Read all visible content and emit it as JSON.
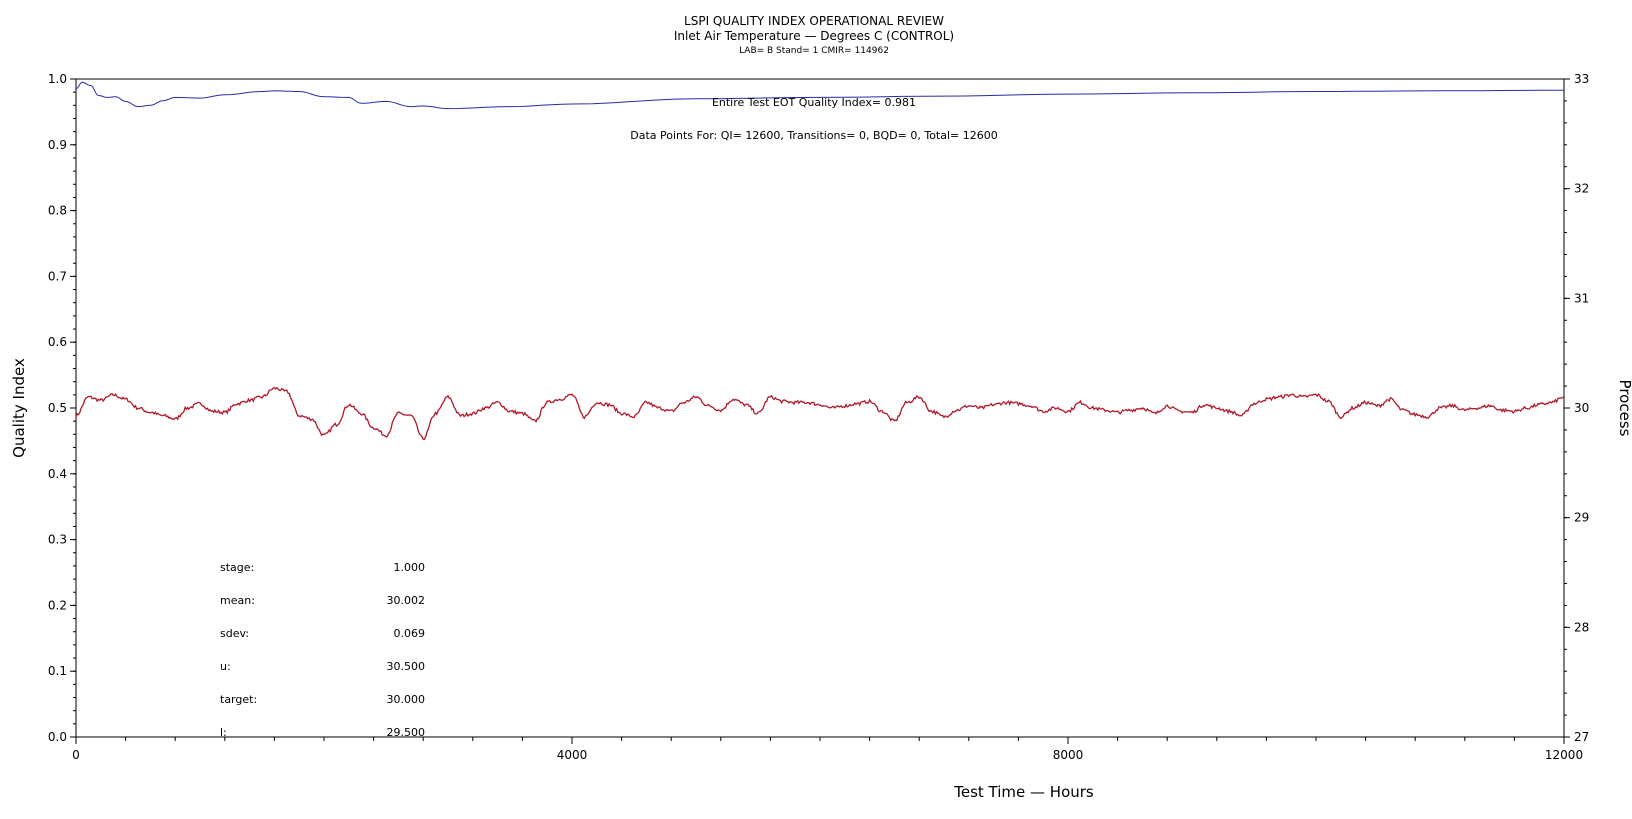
{
  "chart_data": {
    "type": "line",
    "title": "LSPI QUALITY INDEX OPERATIONAL REVIEW",
    "subtitle": "Inlet Air Temperature — Degrees C (CONTROL)",
    "subtitle2": "LAB= B Stand= 1 CMIR= 114962",
    "xlabel": "Test Time — Hours",
    "ylabel_left": "Quality Index",
    "ylabel_right": "Process",
    "xlim": [
      0,
      12000
    ],
    "ylim_left": [
      0.0,
      1.0
    ],
    "ylim_right": [
      27,
      33
    ],
    "x_ticks": [
      "0",
      "4000",
      "8000",
      "12000"
    ],
    "y_left_ticks": [
      "0.0",
      "0.1",
      "0.2",
      "0.3",
      "0.4",
      "0.5",
      "0.6",
      "0.7",
      "0.8",
      "0.9",
      "1.0"
    ],
    "y_right_ticks": [
      "27",
      "28",
      "29",
      "30",
      "31",
      "32",
      "33"
    ],
    "grid": false,
    "annotations": {
      "qi_line": "Entire Test EOT Quality Index=   0.981",
      "data_points": "Data Points For: QI= 12600, Transitions=     0, BQD=     0, Total= 12600"
    },
    "stats": [
      {
        "label": "stage:",
        "value": "1.000"
      },
      {
        "label": "mean:",
        "value": "30.002"
      },
      {
        "label": "sdev:",
        "value": "0.069"
      },
      {
        "label": "u:",
        "value": "30.500"
      },
      {
        "label": "target:",
        "value": "30.000"
      },
      {
        "label": "l:",
        "value": "29.500"
      }
    ],
    "series": [
      {
        "axis": "left",
        "color": "#2b2ba8",
        "x": [
          0,
          50,
          120,
          180,
          250,
          320,
          400,
          500,
          600,
          700,
          800,
          1000,
          1200,
          1500,
          1600,
          1800,
          2000,
          2200,
          2300,
          2500,
          2700,
          2800,
          3000,
          3500,
          4000,
          5000,
          6000,
          7000,
          8000,
          9000,
          10000,
          11000,
          12000
        ],
        "y": [
          0.985,
          0.995,
          0.99,
          0.975,
          0.972,
          0.973,
          0.966,
          0.958,
          0.96,
          0.967,
          0.972,
          0.971,
          0.976,
          0.981,
          0.982,
          0.981,
          0.973,
          0.972,
          0.963,
          0.966,
          0.958,
          0.959,
          0.955,
          0.958,
          0.962,
          0.97,
          0.972,
          0.974,
          0.977,
          0.979,
          0.981,
          0.982,
          0.983
        ]
      },
      {
        "axis": "right",
        "color": "#b0182a",
        "x": [
          0,
          100,
          200,
          300,
          400,
          500,
          600,
          700,
          800,
          900,
          1000,
          1100,
          1200,
          1300,
          1400,
          1500,
          1600,
          1700,
          1800,
          1900,
          2000,
          2100,
          2200,
          2300,
          2400,
          2500,
          2600,
          2700,
          2800,
          2900,
          3000,
          3100,
          3200,
          3300,
          3400,
          3500,
          3600,
          3700,
          3800,
          3900,
          4000,
          4100,
          4200,
          4300,
          4400,
          4500,
          4600,
          4700,
          4800,
          4900,
          5000,
          5100,
          5200,
          5300,
          5400,
          5500,
          5600,
          5700,
          5800,
          5900,
          6000,
          6100,
          6200,
          6300,
          6400,
          6500,
          6600,
          6700,
          6800,
          6900,
          7000,
          7100,
          7200,
          7300,
          7400,
          7500,
          7600,
          7700,
          7800,
          7900,
          8000,
          8100,
          8200,
          8300,
          8400,
          8500,
          8600,
          8700,
          8800,
          8900,
          9000,
          9100,
          9200,
          9300,
          9400,
          9500,
          9600,
          9700,
          9800,
          9900,
          10000,
          10100,
          10200,
          10300,
          10400,
          10500,
          10600,
          10700,
          10800,
          10900,
          11000,
          11100,
          11200,
          11300,
          11400,
          11500,
          11600,
          11700,
          11800,
          11900,
          12000
        ],
        "y": [
          29.93,
          30.1,
          30.07,
          30.12,
          30.08,
          30.0,
          29.96,
          29.93,
          29.9,
          30.0,
          30.04,
          29.97,
          29.96,
          30.04,
          30.07,
          30.1,
          30.18,
          30.15,
          29.93,
          29.9,
          29.75,
          29.85,
          30.03,
          29.95,
          29.82,
          29.75,
          29.95,
          29.93,
          29.72,
          29.95,
          30.1,
          29.93,
          29.95,
          30.0,
          30.05,
          29.97,
          29.95,
          29.88,
          30.05,
          30.08,
          30.12,
          29.92,
          30.05,
          30.03,
          29.95,
          29.92,
          30.05,
          30.0,
          29.97,
          30.05,
          30.1,
          30.02,
          29.98,
          30.08,
          30.03,
          29.95,
          30.1,
          30.06,
          30.05,
          30.05,
          30.03,
          30.0,
          30.02,
          30.04,
          30.06,
          29.97,
          29.88,
          30.05,
          30.1,
          29.97,
          29.92,
          29.98,
          30.02,
          30.0,
          30.03,
          30.05,
          30.04,
          30.02,
          29.97,
          30.0,
          29.97,
          30.05,
          30.0,
          29.98,
          29.96,
          29.98,
          30.0,
          29.95,
          30.02,
          29.97,
          29.96,
          30.03,
          30.0,
          29.97,
          29.93,
          30.04,
          30.08,
          30.1,
          30.12,
          30.1,
          30.12,
          30.06,
          29.92,
          30.0,
          30.05,
          30.02,
          30.08,
          29.98,
          29.94,
          29.92,
          30.0,
          30.02,
          29.98,
          30.0,
          30.02,
          29.98,
          29.97,
          30.0,
          30.03,
          30.05,
          30.1
        ]
      }
    ]
  }
}
